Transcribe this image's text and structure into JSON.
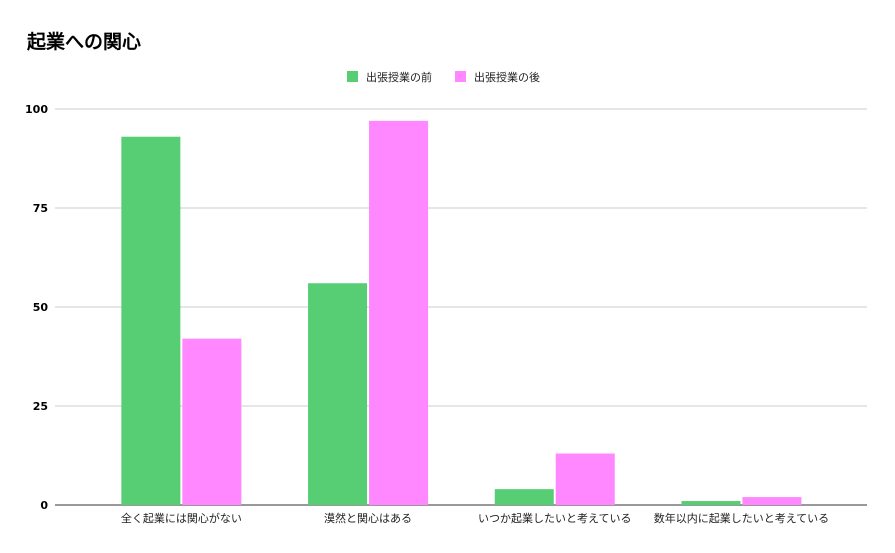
{
  "chart_data": {
    "type": "bar",
    "title": "起業への関心",
    "xlabel": "",
    "ylabel": "",
    "ylim": [
      0,
      100
    ],
    "yticks": [
      0,
      25,
      50,
      75,
      100
    ],
    "grid": true,
    "legend_position": "top",
    "categories": [
      "全く起業には関心がない",
      "漠然と関心はある",
      "いつか起業したいと考えている",
      "数年以内に起業したいと考えている"
    ],
    "series": [
      {
        "name": "出張授業の前",
        "color": "#57cd74",
        "values": [
          93,
          56,
          4,
          1
        ]
      },
      {
        "name": "出張授業の後",
        "color": "#ff87ff",
        "values": [
          42,
          97,
          13,
          2
        ]
      }
    ]
  }
}
